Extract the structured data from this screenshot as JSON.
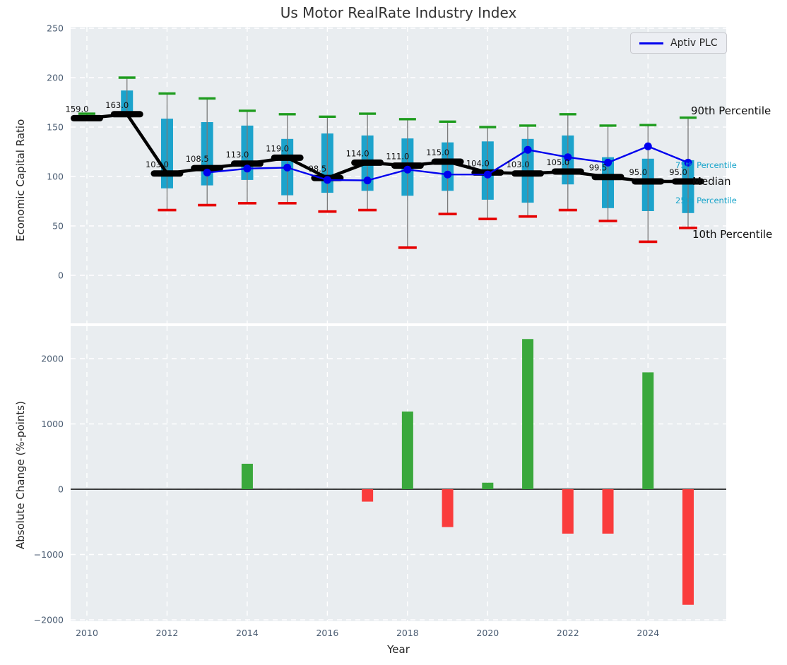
{
  "title": "Us Motor RealRate Industry Index",
  "legend": {
    "label": "Aptiv PLC",
    "line_color": "#0000ee"
  },
  "annotations": {
    "p90": "90th Percentile",
    "p75": "75th Percentile",
    "median": "Median",
    "p25": "25th Percentile",
    "p10": "10th Percentile"
  },
  "colors": {
    "plot_bg": "#e9edf0",
    "grid": "#ffffff",
    "tick_label": "#4a5c72",
    "axis_label": "#262626",
    "title": "#323232",
    "box_fill": "#1ca3cc",
    "whisker": "#7a7a7a",
    "cap_90": "#1e9c1e",
    "cap_10": "#e60000",
    "median_line": "#000000",
    "median_label": "#111111",
    "aptiv_line": "#0000ee",
    "bar_positive": "#3aa83c",
    "bar_negative": "#fa3c3c",
    "zero_line": "#000000"
  },
  "chart_data": [
    {
      "type": "boxplot",
      "panel": "top",
      "title": "Us Motor RealRate Industry Index",
      "ylabel": "Economic Capital Ratio",
      "yticks": [
        0,
        50,
        100,
        150,
        200,
        250
      ],
      "ylim": [
        -48,
        252
      ],
      "grid": true,
      "grid_years": [
        2010,
        2012,
        2014,
        2016,
        2018,
        2020,
        2022,
        2024
      ],
      "years": [
        2010,
        2011,
        2012,
        2013,
        2014,
        2015,
        2016,
        2017,
        2018,
        2019,
        2020,
        2021,
        2022,
        2023,
        2024,
        2025
      ],
      "boxes": [
        {
          "year": 2010,
          "p10": 157.5,
          "p25": 158,
          "median": 159,
          "p75": 160.5,
          "p90": 163.5,
          "label": "159.0"
        },
        {
          "year": 2011,
          "p10": 163,
          "p25": 163.5,
          "median": 163,
          "p75": 187,
          "p90": 200,
          "label": "163.0"
        },
        {
          "year": 2012,
          "p10": 66,
          "p25": 88,
          "median": 103,
          "p75": 158.5,
          "p90": 184,
          "label": "103.0"
        },
        {
          "year": 2013,
          "p10": 71,
          "p25": 91,
          "median": 108.5,
          "p75": 155,
          "p90": 179,
          "label": "108.5"
        },
        {
          "year": 2014,
          "p10": 73,
          "p25": 96.5,
          "median": 113,
          "p75": 151.5,
          "p90": 166.5,
          "label": "113.0"
        },
        {
          "year": 2015,
          "p10": 73,
          "p25": 81,
          "median": 119,
          "p75": 138,
          "p90": 163,
          "label": "119.0"
        },
        {
          "year": 2016,
          "p10": 64.5,
          "p25": 83.5,
          "median": 98.5,
          "p75": 143.5,
          "p90": 160.5,
          "label": "98.5"
        },
        {
          "year": 2017,
          "p10": 66,
          "p25": 85.5,
          "median": 114,
          "p75": 141.5,
          "p90": 163.5,
          "label": "114.0"
        },
        {
          "year": 2018,
          "p10": 28,
          "p25": 80.5,
          "median": 111,
          "p75": 138.5,
          "p90": 158,
          "label": "111.0"
        },
        {
          "year": 2019,
          "p10": 62,
          "p25": 85.5,
          "median": 115,
          "p75": 134.5,
          "p90": 155.5,
          "label": "115.0"
        },
        {
          "year": 2020,
          "p10": 57,
          "p25": 76.5,
          "median": 104,
          "p75": 135.5,
          "p90": 150,
          "label": "104.0"
        },
        {
          "year": 2021,
          "p10": 59.5,
          "p25": 73.5,
          "median": 103,
          "p75": 138,
          "p90": 151.5,
          "label": "103.0"
        },
        {
          "year": 2022,
          "p10": 66,
          "p25": 92,
          "median": 105,
          "p75": 141.5,
          "p90": 163,
          "label": "105.0"
        },
        {
          "year": 2023,
          "p10": 55,
          "p25": 68,
          "median": 99.5,
          "p75": 119.5,
          "p90": 151.5,
          "label": "99.5"
        },
        {
          "year": 2024,
          "p10": 34,
          "p25": 65,
          "median": 95,
          "p75": 118,
          "p90": 152,
          "label": "95.0"
        },
        {
          "year": 2025,
          "p10": 48,
          "p25": 63,
          "median": 95,
          "p75": 116.5,
          "p90": 159.5,
          "label": "95.0"
        }
      ],
      "series": [
        {
          "name": "Aptiv PLC",
          "x": [
            2013,
            2014,
            2015,
            2016,
            2017,
            2018,
            2019,
            2020,
            2021,
            2022,
            2023,
            2024,
            2025
          ],
          "values": [
            104,
            108,
            109,
            96.5,
            96,
            107,
            102,
            102,
            127,
            119.5,
            114,
            130.5,
            114
          ]
        }
      ]
    },
    {
      "type": "bar",
      "panel": "bottom",
      "ylabel": "Absolute Change (%-points)",
      "xlabel": "Year",
      "yticks": [
        -2000,
        -1000,
        0,
        1000,
        2000
      ],
      "ylim": [
        -2080,
        2320
      ],
      "grid": true,
      "xticks": [
        2010,
        2012,
        2014,
        2016,
        2018,
        2020,
        2022,
        2024
      ],
      "years": [
        2010,
        2011,
        2012,
        2013,
        2014,
        2015,
        2016,
        2017,
        2018,
        2019,
        2020,
        2021,
        2022,
        2023,
        2024,
        2025
      ],
      "values": [
        0,
        0,
        0,
        0,
        390,
        0,
        0,
        -190,
        1190,
        -580,
        100,
        2300,
        -680,
        -680,
        1790,
        -1770
      ]
    }
  ]
}
